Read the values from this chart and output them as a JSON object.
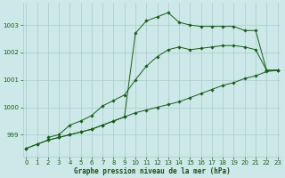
{
  "xlabel": "Graphe pression niveau de la mer (hPa)",
  "background_color": "#cce8e8",
  "grid_color": "#aacccc",
  "line_color": "#1a5c1a",
  "x_ticks": [
    0,
    1,
    2,
    3,
    4,
    5,
    6,
    7,
    8,
    9,
    10,
    11,
    12,
    13,
    14,
    15,
    16,
    17,
    18,
    19,
    20,
    21,
    22,
    23
  ],
  "y_ticks": [
    999,
    1000,
    1001,
    1002,
    1003
  ],
  "ylim": [
    998.2,
    1003.8
  ],
  "xlim": [
    -0.3,
    23.3
  ],
  "series": [
    {
      "x": [
        0,
        1,
        2,
        3,
        4,
        5,
        6,
        7,
        8,
        9,
        10,
        11,
        12,
        13,
        14,
        15,
        16,
        17,
        18,
        19,
        20,
        21,
        22,
        23
      ],
      "y": [
        998.5,
        998.65,
        998.8,
        998.9,
        999.0,
        999.1,
        999.2,
        999.35,
        999.5,
        999.65,
        999.8,
        999.9,
        1000.0,
        1000.1,
        1000.2,
        1000.35,
        1000.5,
        1000.65,
        1000.8,
        1000.9,
        1001.05,
        1001.15,
        1001.3,
        1001.35
      ]
    },
    {
      "x": [
        0,
        1,
        2,
        3,
        4,
        5,
        6,
        7,
        8,
        9,
        10,
        11,
        12,
        13,
        14,
        15,
        16,
        17,
        18,
        19,
        20,
        21,
        22,
        23
      ],
      "y": [
        998.5,
        998.65,
        998.8,
        998.9,
        999.0,
        999.1,
        999.2,
        999.35,
        999.5,
        999.65,
        1002.7,
        1003.15,
        1003.3,
        1003.45,
        1003.1,
        1003.0,
        1002.95,
        1002.95,
        1002.95,
        1002.95,
        1002.8,
        1002.8,
        1001.35,
        1001.35
      ]
    },
    {
      "x": [
        2,
        3,
        4,
        5,
        6,
        7,
        8,
        9,
        10,
        11,
        12,
        13,
        14,
        15,
        16,
        17,
        18,
        19,
        20,
        21,
        22,
        23
      ],
      "y": [
        998.9,
        999.0,
        999.35,
        999.5,
        999.7,
        1000.05,
        1000.25,
        1000.45,
        1001.0,
        1001.5,
        1001.85,
        1002.1,
        1002.2,
        1002.1,
        1002.15,
        1002.2,
        1002.25,
        1002.25,
        1002.2,
        1002.1,
        1001.35,
        1001.35
      ]
    }
  ]
}
